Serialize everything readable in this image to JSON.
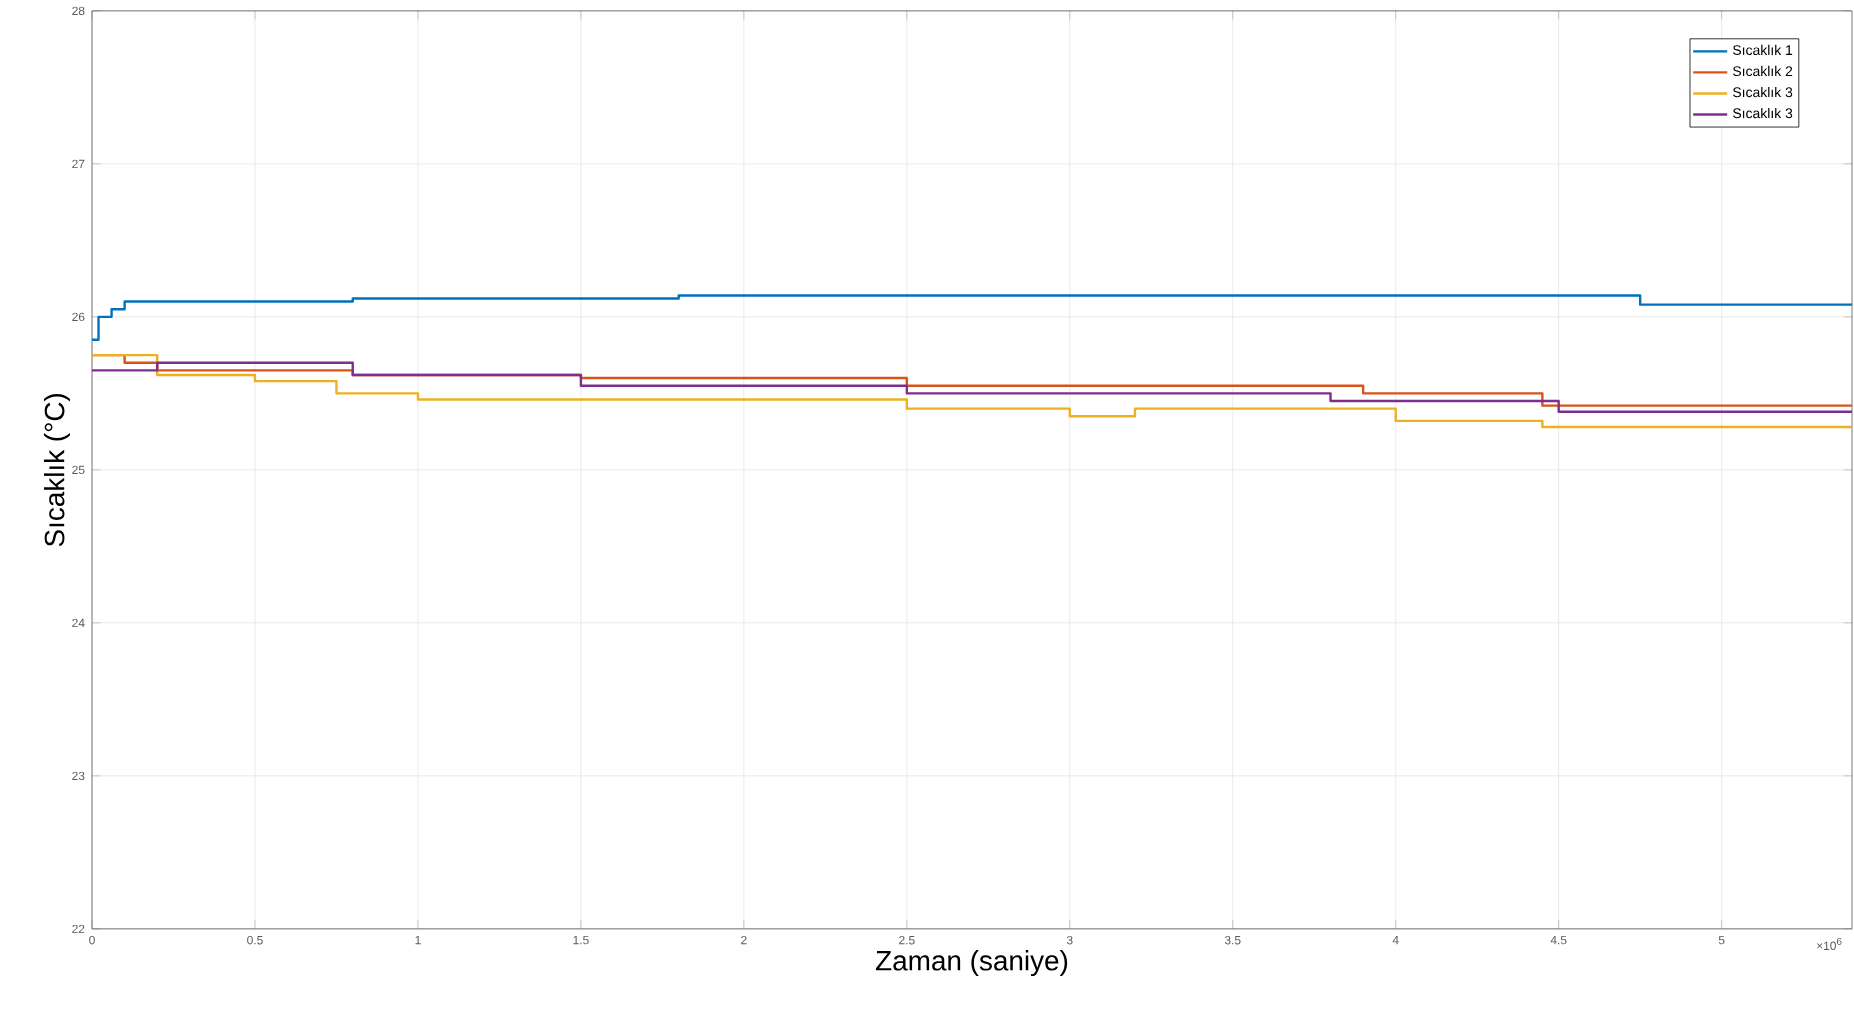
{
  "chart_data": {
    "type": "step",
    "xlabel": "Zaman (saniye)",
    "ylabel": "Sıcaklık (°C)",
    "annotations": [
      "×10$^{6}$"
    ],
    "xlim": [
      0,
      5.4
    ],
    "ylim": [
      22,
      28
    ],
    "xticks": [
      0,
      0.5,
      1,
      1.5,
      2,
      2.5,
      3,
      3.5,
      4,
      4.5,
      5
    ],
    "yticks": [
      22,
      23,
      24,
      25,
      26,
      27,
      28
    ],
    "grid": true,
    "legend": "top right",
    "marker": "none",
    "line_style": "solid",
    "series": [
      {
        "name": "Sıcaklık 1",
        "color": "#0072bd",
        "x": [
          0,
          0.02,
          0.06,
          0.1,
          0.8,
          1.8,
          4.75,
          5.4
        ],
        "values": [
          25.85,
          26.0,
          26.05,
          26.1,
          26.12,
          26.14,
          26.08,
          26.08
        ]
      },
      {
        "name": "Sıcaklık 2",
        "color": "#d95319",
        "x": [
          0,
          0.1,
          0.2,
          0.8,
          1.5,
          2.5,
          3.9,
          4.45,
          5.4
        ],
        "values": [
          25.75,
          25.7,
          25.65,
          25.62,
          25.6,
          25.55,
          25.5,
          25.42,
          25.42
        ]
      },
      {
        "name": "Sıcaklık 3",
        "color": "#edb120",
        "x": [
          0,
          0.2,
          0.5,
          0.75,
          1,
          2.5,
          3,
          3.2,
          4,
          4.45,
          5.4
        ],
        "values": [
          25.75,
          25.62,
          25.58,
          25.5,
          25.46,
          25.4,
          25.35,
          25.4,
          25.32,
          25.28,
          25.28
        ]
      },
      {
        "name": "Sıcaklık 3",
        "color": "#7e2f8e",
        "x": [
          0,
          0.2,
          0.8,
          1.5,
          2.5,
          3.8,
          4.5,
          5.4
        ],
        "values": [
          25.65,
          25.7,
          25.62,
          25.55,
          25.5,
          25.45,
          25.38,
          25.38
        ]
      }
    ]
  }
}
